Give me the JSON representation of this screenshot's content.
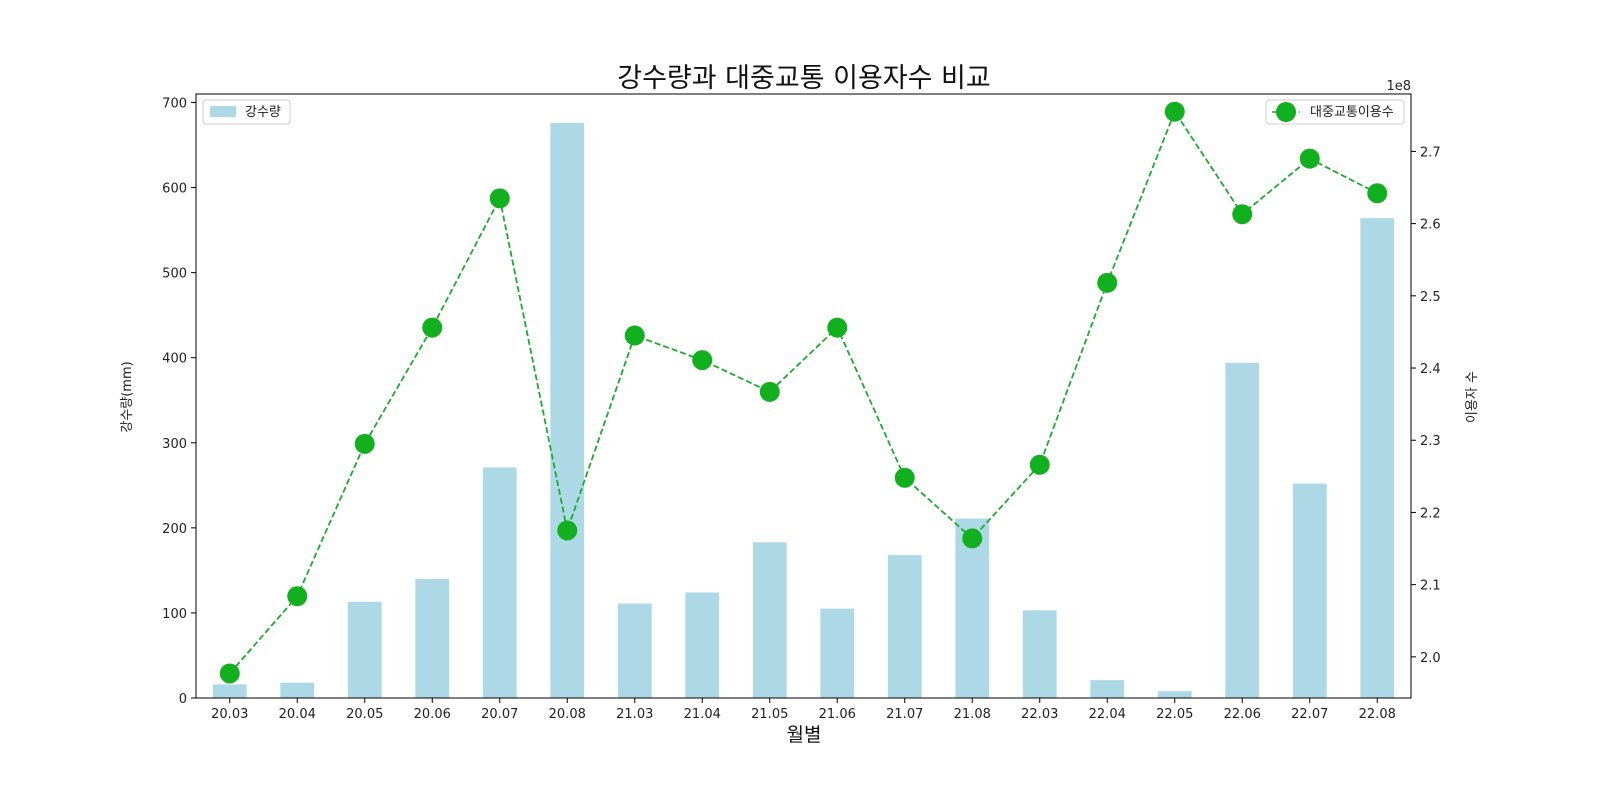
{
  "chart_data": {
    "type": "bar+line",
    "title": "강수량과 대중교통 이용자수 비교",
    "xlabel": "월별",
    "ylabel_left": "강수량(mm)",
    "ylabel_right": "이용자 수",
    "right_axis_multiplier": "1e8",
    "categories": [
      "20.03",
      "20.04",
      "20.05",
      "20.06",
      "20.07",
      "20.08",
      "21.03",
      "21.04",
      "21.05",
      "21.06",
      "21.07",
      "21.08",
      "22.03",
      "22.04",
      "22.05",
      "22.06",
      "22.07",
      "22.08"
    ],
    "ylim_left": [
      0,
      710
    ],
    "yticks_left": [
      0,
      100,
      200,
      300,
      400,
      500,
      600,
      700
    ],
    "ylim_right": [
      1.943,
      2.7795
    ],
    "yticks_right": [
      2.0,
      2.1,
      2.2,
      2.3,
      2.4,
      2.5,
      2.6,
      2.7
    ],
    "bar_series": {
      "name": "강수량",
      "color": "#add8e6",
      "values": [
        16,
        18,
        113,
        140,
        271,
        676,
        111,
        124,
        183,
        105,
        168,
        211,
        103,
        21,
        8,
        394,
        252,
        564
      ]
    },
    "line_series": {
      "name": "대중교통이용수",
      "color": "#12b01e",
      "line_color": "#1aad2a",
      "values": [
        1.977,
        2.084,
        2.295,
        2.456,
        2.635,
        2.175,
        2.445,
        2.411,
        2.367,
        2.456,
        2.248,
        2.164,
        2.266,
        2.518,
        2.755,
        2.613,
        2.69,
        2.642
      ]
    },
    "legend_bar_position": "top-left",
    "legend_line_position": "top-right",
    "grid": false
  }
}
